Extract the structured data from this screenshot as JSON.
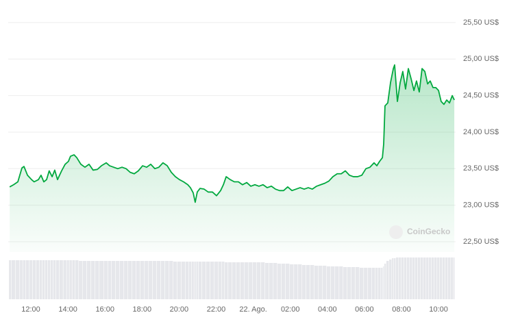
{
  "chart_data": {
    "type": "line",
    "x": [
      10.86,
      11.07,
      11.3,
      11.52,
      11.63,
      11.82,
      12.04,
      12.18,
      12.41,
      12.55,
      12.7,
      12.85,
      12.99,
      13.15,
      13.29,
      13.44,
      13.66,
      13.85,
      14.03,
      14.14,
      14.33,
      14.48,
      14.7,
      14.92,
      15.14,
      15.36,
      15.59,
      15.81,
      16.07,
      16.25,
      16.47,
      16.69,
      16.92,
      17.14,
      17.36,
      17.58,
      17.8,
      18.03,
      18.25,
      18.47,
      18.69,
      18.91,
      19.13,
      19.36,
      19.58,
      19.8,
      20.02,
      20.24,
      20.47,
      20.61,
      20.76,
      20.87,
      20.98,
      21.13,
      21.35,
      21.57,
      21.8,
      22.02,
      22.24,
      22.39,
      22.54,
      22.76,
      22.98,
      23.2,
      23.42,
      23.65,
      23.87,
      24.09,
      24.31,
      24.53,
      24.75,
      24.98,
      25.2,
      25.42,
      25.64,
      25.86,
      26.09,
      26.31,
      26.53,
      26.75,
      26.97,
      27.19,
      27.42,
      27.64,
      27.86,
      28.08,
      28.3,
      28.53,
      28.75,
      28.97,
      29.19,
      29.41,
      29.63,
      29.86,
      30.08,
      30.3,
      30.52,
      30.67,
      30.82,
      30.97,
      31.04,
      31.11,
      31.26,
      31.41,
      31.56,
      31.63,
      31.78,
      31.93,
      32.07,
      32.22,
      32.37,
      32.52,
      32.67,
      32.81,
      32.96,
      33.11,
      33.26,
      33.41,
      33.55,
      33.7,
      33.85,
      34.0,
      34.14,
      34.29,
      34.44,
      34.59,
      34.74,
      34.85
    ],
    "values": [
      23.25,
      23.28,
      23.32,
      23.51,
      23.53,
      23.41,
      23.35,
      23.32,
      23.35,
      23.41,
      23.32,
      23.35,
      23.47,
      23.39,
      23.48,
      23.35,
      23.47,
      23.56,
      23.6,
      23.67,
      23.69,
      23.65,
      23.56,
      23.52,
      23.56,
      23.48,
      23.49,
      23.54,
      23.58,
      23.54,
      23.52,
      23.5,
      23.52,
      23.5,
      23.45,
      23.43,
      23.47,
      23.54,
      23.52,
      23.56,
      23.5,
      23.52,
      23.58,
      23.54,
      23.45,
      23.39,
      23.35,
      23.32,
      23.28,
      23.24,
      23.17,
      23.04,
      23.18,
      23.23,
      23.22,
      23.18,
      23.18,
      23.13,
      23.2,
      23.28,
      23.39,
      23.35,
      23.32,
      23.32,
      23.28,
      23.31,
      23.26,
      23.28,
      23.26,
      23.28,
      23.24,
      23.26,
      23.22,
      23.2,
      23.2,
      23.25,
      23.2,
      23.22,
      23.24,
      23.22,
      23.24,
      23.22,
      23.26,
      23.28,
      23.3,
      23.33,
      23.39,
      23.43,
      23.43,
      23.47,
      23.41,
      23.39,
      23.39,
      23.41,
      23.5,
      23.52,
      23.58,
      23.54,
      23.6,
      23.65,
      23.84,
      24.36,
      24.4,
      24.68,
      24.87,
      24.92,
      24.42,
      24.68,
      24.83,
      24.59,
      24.87,
      24.73,
      24.57,
      24.7,
      24.55,
      24.87,
      24.83,
      24.66,
      24.7,
      24.61,
      24.61,
      24.57,
      24.42,
      24.38,
      24.44,
      24.4,
      24.5,
      24.44
    ],
    "volume": [
      57,
      57,
      57,
      57,
      57,
      57,
      57,
      57,
      57,
      57,
      57,
      57,
      57,
      57,
      57,
      57,
      57,
      57,
      57,
      57,
      57,
      57,
      56,
      56,
      56,
      56,
      56,
      56,
      56,
      56,
      56,
      56,
      56,
      56,
      56,
      56,
      56,
      56,
      56,
      56,
      56,
      56,
      56,
      56,
      56,
      55,
      55,
      55,
      55,
      55,
      55,
      55,
      55,
      55,
      55,
      55,
      55,
      55,
      55,
      55,
      54,
      54,
      54,
      54,
      54,
      54,
      54,
      54,
      54,
      54,
      53,
      53,
      53,
      52,
      52,
      52,
      51,
      51,
      51,
      50,
      50,
      50,
      49,
      49,
      49,
      48,
      48,
      48,
      48,
      47,
      47,
      47,
      47,
      46,
      46,
      46,
      46,
      46,
      46,
      46,
      48,
      52,
      56,
      58,
      60,
      60,
      61,
      61,
      61,
      61,
      61,
      61,
      61,
      61,
      61,
      61,
      61,
      61,
      61,
      61,
      61,
      61,
      61,
      61,
      61,
      61,
      61,
      61
    ],
    "color": "#00a83e",
    "volume_color": "#e6e7eb",
    "xlim": [
      10.78,
      34.92
    ],
    "xticks": [
      {
        "value": 12,
        "label": "12:00"
      },
      {
        "value": 14,
        "label": "14:00"
      },
      {
        "value": 16,
        "label": "16:00"
      },
      {
        "value": 18,
        "label": "18:00"
      },
      {
        "value": 20,
        "label": "20:00"
      },
      {
        "value": 22,
        "label": "22:00"
      },
      {
        "value": 24,
        "label": "22. Ago."
      },
      {
        "value": 26,
        "label": "02:00"
      },
      {
        "value": 28,
        "label": "04:00"
      },
      {
        "value": 30,
        "label": "06:00"
      },
      {
        "value": 32,
        "label": "08:00"
      },
      {
        "value": 34,
        "label": "10:00"
      }
    ],
    "ylim": [
      21.75,
      25.625
    ],
    "yticks": [
      {
        "value": 22.5,
        "label": "22,50 US$"
      },
      {
        "value": 23,
        "label": "23,00 US$"
      },
      {
        "value": 23.5,
        "label": "23,50 US$"
      },
      {
        "value": 24,
        "label": "24,00 US$"
      },
      {
        "value": 24.5,
        "label": "24,50 US$"
      },
      {
        "value": 25,
        "label": "25,00 US$"
      },
      {
        "value": 25.5,
        "label": "25,50 US$"
      }
    ],
    "y2lim": [
      0,
      65
    ],
    "grid": true,
    "watermark": "CoinGecko"
  }
}
